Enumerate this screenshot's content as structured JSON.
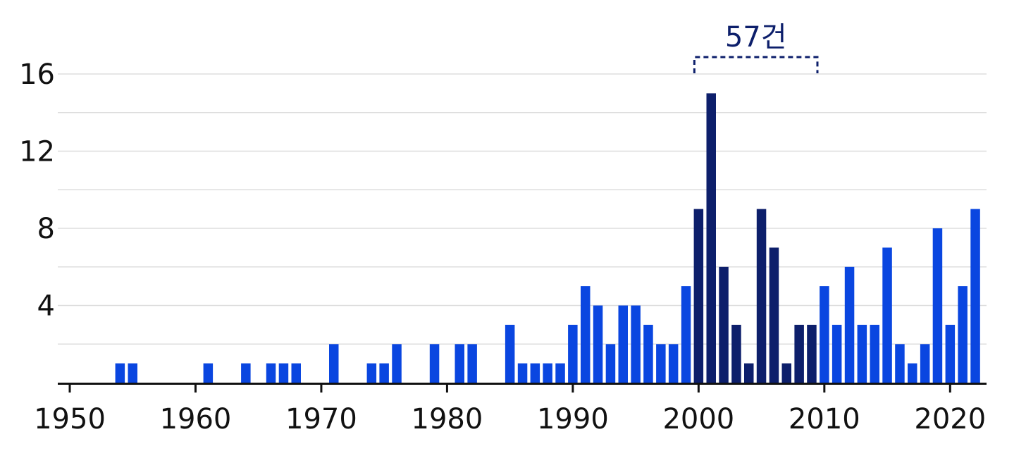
{
  "chart_data": {
    "type": "bar",
    "title": "",
    "xlabel": "",
    "ylabel": "",
    "xlim": [
      1949,
      2023
    ],
    "ylim": [
      0,
      16
    ],
    "grid": true,
    "yticks": [
      4,
      8,
      12,
      16
    ],
    "xticks": [
      1950,
      1960,
      1970,
      1980,
      1990,
      2000,
      2010,
      2020
    ],
    "ytick_labels": [
      "4",
      "8",
      "12",
      "16"
    ],
    "xtick_labels": [
      "1950",
      "1960",
      "1970",
      "1980",
      "1990",
      "2000",
      "2010",
      "2020"
    ],
    "colors": {
      "bar": "#0a46e0",
      "highlight": "#0d1f6b",
      "grid": "#dddddd",
      "axis": "#111111"
    },
    "x": [
      1954,
      1955,
      1961,
      1964,
      1966,
      1967,
      1968,
      1971,
      1974,
      1975,
      1976,
      1979,
      1981,
      1982,
      1985,
      1986,
      1987,
      1988,
      1989,
      1990,
      1991,
      1992,
      1993,
      1994,
      1995,
      1996,
      1997,
      1998,
      1999,
      2000,
      2001,
      2002,
      2003,
      2004,
      2005,
      2006,
      2007,
      2008,
      2009,
      2010,
      2011,
      2012,
      2013,
      2014,
      2015,
      2016,
      2017,
      2018,
      2019,
      2020,
      2021,
      2022
    ],
    "values": [
      1,
      1,
      1,
      1,
      1,
      1,
      1,
      2,
      1,
      1,
      2,
      2,
      2,
      2,
      3,
      1,
      1,
      1,
      1,
      3,
      5,
      4,
      2,
      4,
      4,
      3,
      2,
      2,
      5,
      9,
      15,
      6,
      3,
      1,
      9,
      7,
      1,
      3,
      3,
      5,
      3,
      6,
      3,
      3,
      7,
      2,
      1,
      2,
      8,
      3,
      5,
      9
    ],
    "highlight_range": [
      2000,
      2009
    ],
    "annotation": {
      "text": "57건",
      "range": [
        2000,
        2009
      ]
    }
  }
}
